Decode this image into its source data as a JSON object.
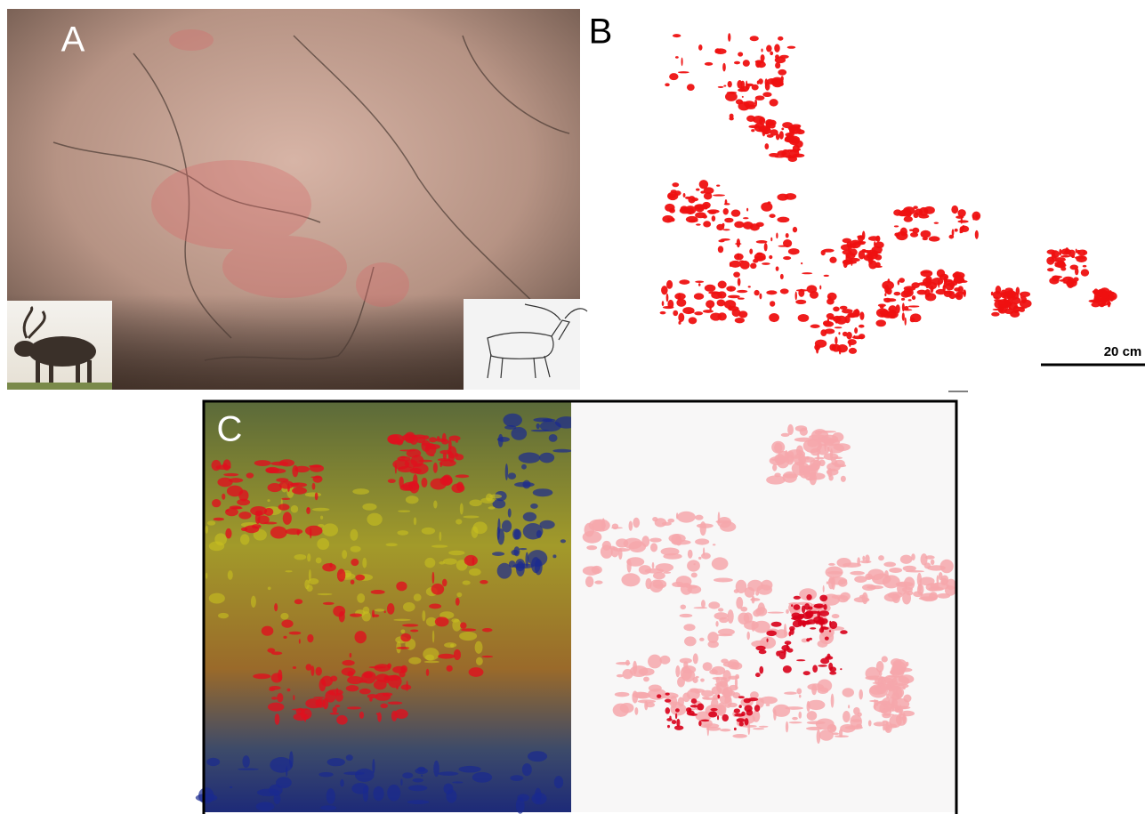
{
  "panels": [
    {
      "label": "A"
    },
    {
      "label": "B",
      "scale_bar": "20 cm"
    },
    {
      "label": "C"
    }
  ]
}
